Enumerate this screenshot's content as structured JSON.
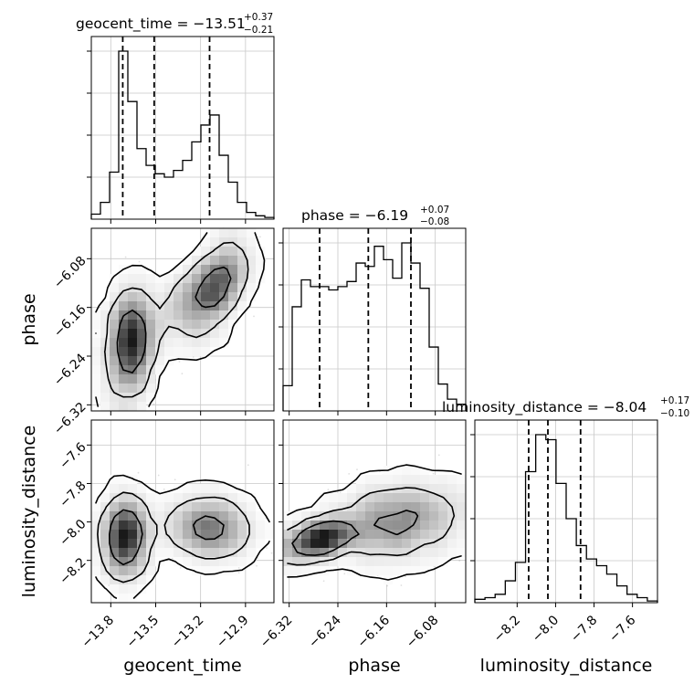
{
  "chart_data": {
    "type": "corner",
    "parameters": [
      {
        "name": "geocent_time",
        "axis_label": "geocent_time",
        "title_main": "geocent_time = −13.51",
        "title_plus": "+0.37",
        "title_minus": "−0.21",
        "median": -13.51,
        "quantiles": [
          -13.72,
          -13.51,
          -13.14
        ],
        "range": [
          -13.93,
          -12.71
        ],
        "ticks": [
          -13.8,
          -13.5,
          -13.2,
          -12.9
        ],
        "tick_labels": [
          "−13.8",
          "−13.5",
          "−13.2",
          "−12.9"
        ],
        "histogram": [
          0.03,
          0.1,
          0.28,
          1.0,
          0.7,
          0.42,
          0.32,
          0.27,
          0.25,
          0.29,
          0.35,
          0.46,
          0.56,
          0.62,
          0.38,
          0.22,
          0.1,
          0.04,
          0.02,
          0.01
        ]
      },
      {
        "name": "phase",
        "axis_label": "phase",
        "title_main": "phase = −6.19",
        "title_plus": "+0.07",
        "title_minus": "−0.08",
        "median": -6.19,
        "quantiles": [
          -6.27,
          -6.19,
          -6.12
        ],
        "range": [
          -6.33,
          -6.03
        ],
        "ticks": [
          -6.32,
          -6.24,
          -6.16,
          -6.08
        ],
        "tick_labels": [
          "−6.32",
          "−6.24",
          "−6.16",
          "−6.08"
        ],
        "histogram": [
          0.15,
          0.62,
          0.78,
          0.74,
          0.74,
          0.72,
          0.74,
          0.77,
          0.88,
          0.86,
          0.98,
          0.9,
          0.79,
          1.0,
          0.88,
          0.73,
          0.38,
          0.16,
          0.07,
          0.04
        ]
      },
      {
        "name": "luminosity_distance",
        "axis_label": "luminosity_distance",
        "title_main": "luminosity_distance = −8.04",
        "title_plus": "+0.17",
        "title_minus": "−0.10",
        "median": -8.04,
        "quantiles": [
          -8.14,
          -8.04,
          -7.87
        ],
        "range": [
          -8.42,
          -7.47
        ],
        "ticks": [
          -8.2,
          -8.0,
          -7.8,
          -7.6
        ],
        "tick_labels": [
          "−8.2",
          "−8.0",
          "−7.8",
          "−7.6"
        ],
        "histogram": [
          0.02,
          0.03,
          0.05,
          0.13,
          0.24,
          0.78,
          1.0,
          0.97,
          0.71,
          0.5,
          0.34,
          0.26,
          0.22,
          0.17,
          0.1,
          0.05,
          0.03,
          0.01
        ]
      }
    ],
    "pair_distributions": [
      {
        "x": "geocent_time",
        "y": "phase",
        "modes": [
          {
            "cx": -13.67,
            "cy": -6.22,
            "sx": 0.07,
            "sy": 0.045,
            "rho": 0.15,
            "w": 0.5
          },
          {
            "cx": -13.3,
            "cy": -6.15,
            "sx": 0.16,
            "sy": 0.04,
            "rho": 0.75,
            "w": 0.15
          },
          {
            "cx": -13.1,
            "cy": -6.13,
            "sx": 0.1,
            "sy": 0.04,
            "rho": 0.55,
            "w": 0.35
          }
        ]
      },
      {
        "x": "geocent_time",
        "y": "luminosity_distance",
        "modes": [
          {
            "cx": -13.7,
            "cy": -8.08,
            "sx": 0.07,
            "sy": 0.1,
            "rho": 0.05,
            "w": 0.55
          },
          {
            "cx": -13.15,
            "cy": -8.03,
            "sx": 0.14,
            "sy": 0.08,
            "rho": -0.1,
            "w": 0.45
          }
        ]
      },
      {
        "x": "phase",
        "y": "luminosity_distance",
        "modes": [
          {
            "cx": -6.27,
            "cy": -8.09,
            "sx": 0.03,
            "sy": 0.05,
            "rho": 0.5,
            "w": 0.4
          },
          {
            "cx": -6.14,
            "cy": -8.0,
            "sx": 0.055,
            "sy": 0.1,
            "rho": 0.2,
            "w": 0.6
          }
        ]
      }
    ],
    "grid": true
  }
}
